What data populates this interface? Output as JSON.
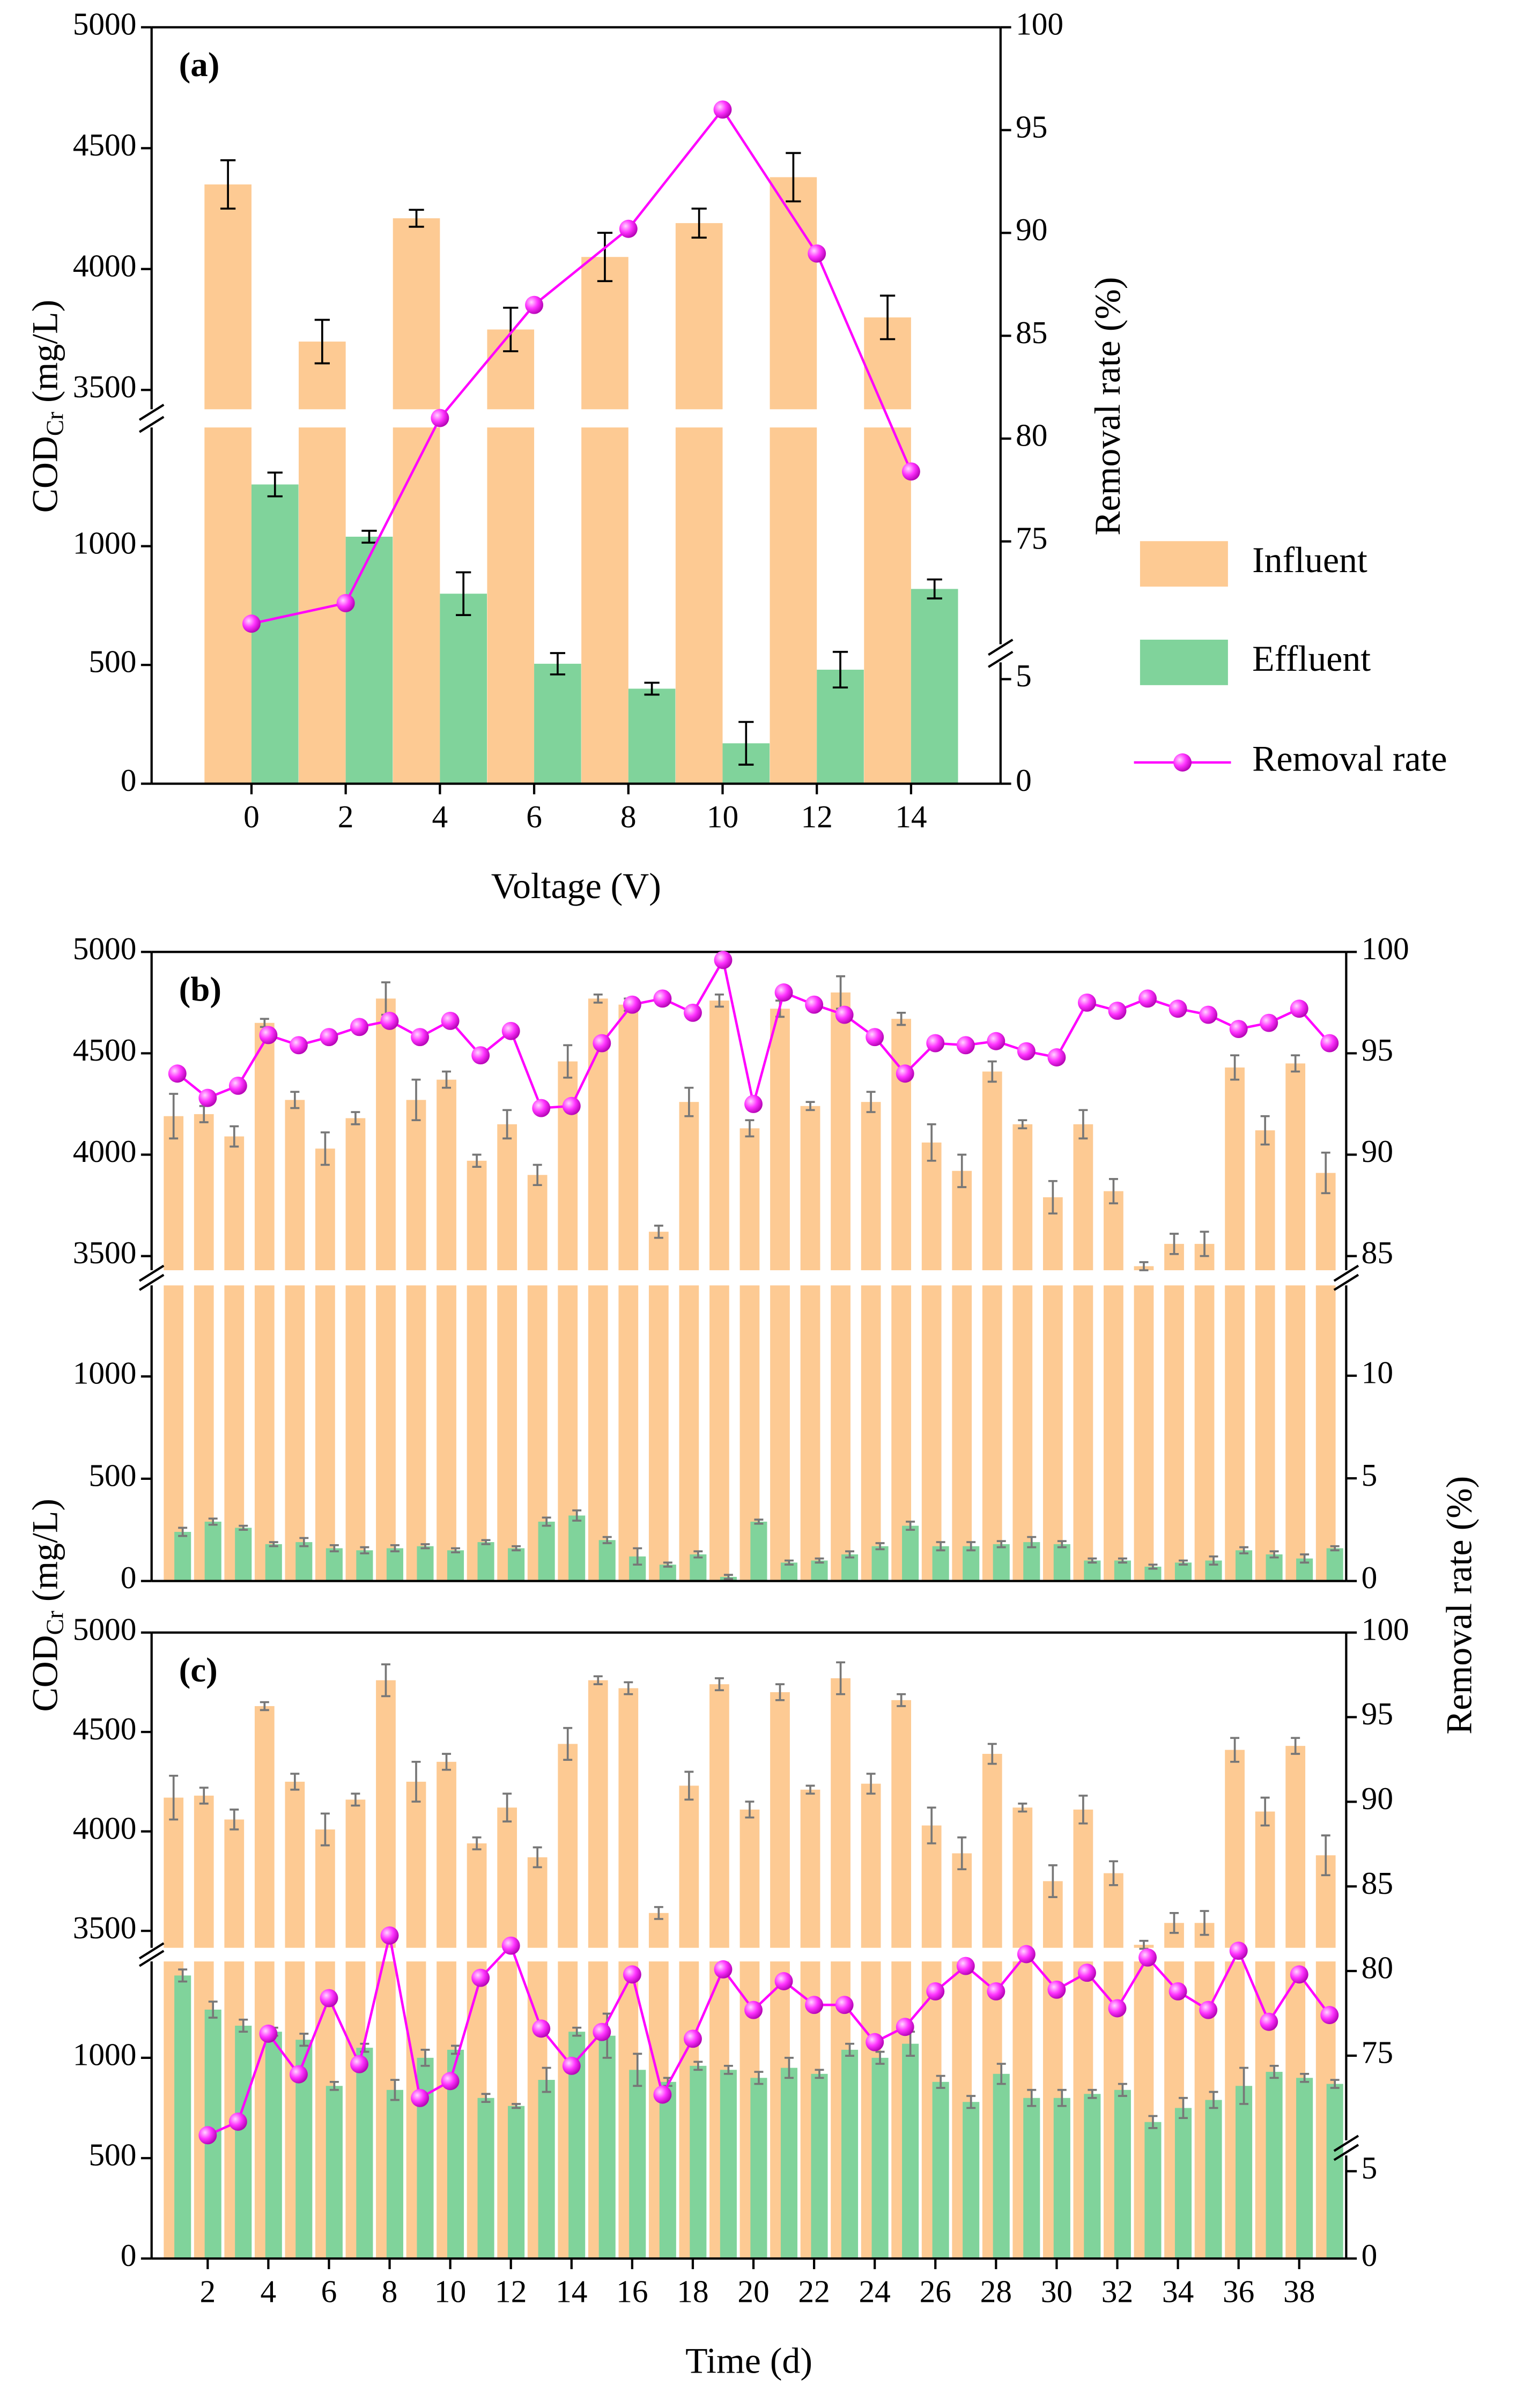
{
  "chart_data": [
    {
      "type": "bar",
      "title": "(a)",
      "x_label": "Voltage (V)",
      "y_label": {
        "text": "COD",
        "sub": "Cr",
        "unit": "(mg/L)"
      },
      "y2_label": "Removal rate (%)",
      "legend": "outside right",
      "x": [
        0,
        2,
        4,
        6,
        8,
        10,
        12,
        14
      ],
      "xlim": [
        -2.12,
        15.9
      ],
      "xticks": [
        0,
        2,
        4,
        6,
        8,
        10,
        12,
        14
      ],
      "y_segments": [
        {
          "ylim": [
            0,
            1500
          ],
          "yticks": [
            0,
            500,
            1000
          ]
        },
        {
          "ylim": [
            3420,
            5000
          ],
          "yticks": [
            3500,
            4000,
            4500,
            5000
          ]
        }
      ],
      "y2_segments": [
        {
          "ylim": [
            0,
            5.8
          ],
          "yticks": [
            0,
            5
          ]
        },
        {
          "ylim": [
            70,
            100
          ],
          "yticks": [
            75,
            80,
            85,
            90,
            95,
            100
          ]
        }
      ],
      "series": [
        {
          "name": "Influent",
          "type": "bar",
          "color": "#fdca93",
          "values": [
            4350,
            3700,
            4210,
            3750,
            4050,
            4190,
            4380,
            3800
          ],
          "errors": [
            100,
            90,
            35,
            90,
            100,
            60,
            100,
            90
          ]
        },
        {
          "name": "Effluent",
          "type": "bar",
          "color": "#80d39b",
          "values": [
            1260,
            1040,
            800,
            505,
            400,
            170,
            480,
            820
          ],
          "errors": [
            50,
            25,
            90,
            45,
            25,
            90,
            75,
            40
          ]
        },
        {
          "name": "Removal rate",
          "type": "line",
          "axis": "y2",
          "color": "#ff00ff",
          "values": [
            71,
            72,
            81,
            86.5,
            90.2,
            96,
            89,
            78.4
          ]
        }
      ]
    },
    {
      "type": "bar",
      "title": "(b)",
      "y_label": {
        "text": "COD",
        "sub": "Cr",
        "unit": "(mg/L)"
      },
      "y2_label": "Removal rate (%)",
      "x": [
        1,
        2,
        3,
        4,
        5,
        6,
        7,
        8,
        9,
        10,
        11,
        12,
        13,
        14,
        15,
        16,
        17,
        18,
        19,
        20,
        21,
        22,
        23,
        24,
        25,
        26,
        27,
        28,
        29,
        30,
        31,
        32,
        33,
        34,
        35,
        36,
        37,
        38,
        39
      ],
      "xlim": [
        0.15,
        39.55
      ],
      "y_segments": [
        {
          "ylim": [
            0,
            1445
          ],
          "yticks": [
            0,
            500,
            1000
          ]
        },
        {
          "ylim": [
            3430,
            5000
          ],
          "yticks": [
            3500,
            4000,
            4500,
            5000
          ]
        }
      ],
      "y2_segments": [
        {
          "ylim": [
            0,
            14.4
          ],
          "yticks": [
            0,
            5,
            10
          ]
        },
        {
          "ylim": [
            84.3,
            100
          ],
          "yticks": [
            85,
            90,
            95,
            100
          ]
        }
      ],
      "series": [
        {
          "type": "bar",
          "color": "#fdca93",
          "values": [
            4190,
            4200,
            4090,
            4650,
            4270,
            4030,
            4180,
            4770,
            4270,
            4370,
            3970,
            4150,
            3900,
            4460,
            4770,
            4740,
            3620,
            4260,
            4760,
            4130,
            4720,
            4240,
            4800,
            4260,
            4670,
            4060,
            3920,
            4410,
            4150,
            3790,
            4150,
            3820,
            3450,
            3560,
            3560,
            4430,
            4120,
            4450,
            3910
          ],
          "errors": [
            110,
            40,
            50,
            20,
            40,
            80,
            30,
            80,
            100,
            40,
            30,
            70,
            50,
            80,
            20,
            30,
            30,
            70,
            30,
            40,
            40,
            20,
            80,
            50,
            30,
            90,
            80,
            50,
            20,
            80,
            70,
            60,
            20,
            50,
            60,
            60,
            70,
            40,
            100
          ]
        },
        {
          "type": "bar",
          "color": "#80d39b",
          "values": [
            240,
            290,
            260,
            180,
            190,
            160,
            150,
            160,
            170,
            150,
            190,
            160,
            290,
            320,
            200,
            120,
            80,
            130,
            20,
            290,
            90,
            100,
            130,
            170,
            270,
            170,
            170,
            180,
            190,
            180,
            100,
            100,
            70,
            90,
            100,
            150,
            130,
            110,
            160
          ],
          "errors": [
            20,
            15,
            10,
            10,
            20,
            15,
            15,
            15,
            10,
            10,
            10,
            10,
            20,
            25,
            15,
            40,
            10,
            15,
            10,
            10,
            10,
            10,
            15,
            15,
            20,
            20,
            20,
            15,
            25,
            15,
            10,
            10,
            10,
            10,
            20,
            15,
            15,
            20,
            10
          ]
        },
        {
          "type": "line",
          "axis": "y2",
          "color": "#ff00ff",
          "values": [
            94.0,
            92.8,
            93.4,
            95.9,
            95.4,
            95.8,
            96.3,
            96.6,
            95.8,
            96.6,
            94.9,
            96.1,
            92.3,
            92.4,
            95.5,
            97.4,
            97.7,
            97.0,
            99.6,
            92.5,
            98.0,
            97.4,
            96.9,
            95.8,
            94.0,
            95.5,
            95.4,
            95.6,
            95.1,
            94.8,
            97.5,
            97.1,
            97.7,
            97.2,
            96.9,
            96.2,
            96.5,
            97.2,
            95.5
          ]
        }
      ]
    },
    {
      "type": "bar",
      "title": "(c)",
      "x_label": "Time (d)",
      "x": [
        1,
        2,
        3,
        4,
        5,
        6,
        7,
        8,
        9,
        10,
        11,
        12,
        13,
        14,
        15,
        16,
        17,
        18,
        19,
        20,
        21,
        22,
        23,
        24,
        25,
        26,
        27,
        28,
        29,
        30,
        31,
        32,
        33,
        34,
        35,
        36,
        37,
        38,
        39
      ],
      "xlim": [
        0.15,
        39.55
      ],
      "xticks": [
        2,
        4,
        6,
        8,
        10,
        12,
        14,
        16,
        18,
        20,
        22,
        24,
        26,
        28,
        30,
        32,
        34,
        36,
        38
      ],
      "y_segments": [
        {
          "ylim": [
            0,
            1480
          ],
          "yticks": [
            0,
            500,
            1000
          ]
        },
        {
          "ylim": [
            3415,
            5000
          ],
          "yticks": [
            3500,
            4000,
            4500,
            5000
          ]
        }
      ],
      "y2_segments": [
        {
          "ylim": [
            0,
            5.9
          ],
          "yticks": [
            0,
            5
          ]
        },
        {
          "ylim": [
            70,
            100
          ],
          "yticks": [
            75,
            80,
            85,
            90,
            95,
            100
          ]
        }
      ],
      "series": [
        {
          "type": "bar",
          "color": "#fdca93",
          "values": [
            4170,
            4180,
            4060,
            4630,
            4250,
            4010,
            4160,
            4760,
            4250,
            4350,
            3940,
            4120,
            3870,
            4440,
            4760,
            4720,
            3590,
            4230,
            4740,
            4110,
            4700,
            4210,
            4770,
            4240,
            4660,
            4030,
            3890,
            4390,
            4120,
            3750,
            4110,
            3790,
            3430,
            3540,
            3540,
            4410,
            4100,
            4430,
            3880
          ],
          "errors": [
            110,
            40,
            50,
            20,
            40,
            80,
            30,
            80,
            100,
            40,
            30,
            70,
            50,
            80,
            20,
            30,
            30,
            70,
            30,
            40,
            40,
            20,
            80,
            50,
            30,
            90,
            80,
            50,
            20,
            80,
            70,
            60,
            20,
            50,
            60,
            60,
            70,
            40,
            100
          ]
        },
        {
          "type": "bar",
          "color": "#80d39b",
          "values": [
            1410,
            1240,
            1160,
            1130,
            1090,
            860,
            1050,
            840,
            1000,
            1040,
            800,
            760,
            890,
            1130,
            1110,
            940,
            880,
            960,
            940,
            900,
            950,
            920,
            1040,
            1000,
            1070,
            880,
            780,
            920,
            800,
            800,
            820,
            840,
            680,
            750,
            790,
            860,
            930,
            900,
            870
          ],
          "errors": [
            30,
            40,
            30,
            20,
            30,
            20,
            20,
            50,
            40,
            20,
            20,
            10,
            60,
            20,
            110,
            80,
            20,
            20,
            20,
            30,
            50,
            20,
            30,
            30,
            60,
            30,
            30,
            50,
            40,
            40,
            20,
            30,
            30,
            50,
            40,
            90,
            30,
            20,
            20
          ]
        },
        {
          "type": "line",
          "axis": "y2",
          "color": "#ff00ff",
          "values": [
            null,
            70.3,
            71.1,
            76.3,
            73.9,
            78.4,
            74.5,
            82.1,
            72.5,
            73.5,
            79.6,
            81.5,
            76.6,
            74.4,
            76.4,
            79.8,
            72.7,
            76.0,
            80.1,
            77.7,
            79.4,
            78.0,
            78.0,
            75.8,
            76.7,
            78.8,
            80.3,
            78.8,
            81.0,
            78.9,
            79.9,
            77.8,
            80.8,
            78.8,
            77.7,
            81.2,
            77.0,
            79.8,
            77.4
          ]
        }
      ]
    }
  ]
}
